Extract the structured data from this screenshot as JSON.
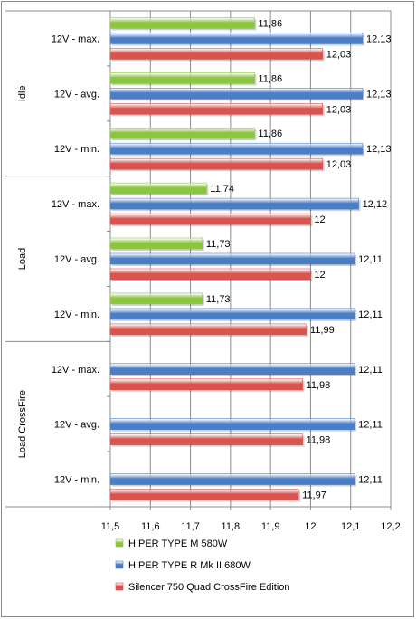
{
  "chart_data": {
    "type": "bar",
    "orientation": "horizontal",
    "title": "",
    "xlabel": "",
    "ylabel": "",
    "xlim": [
      11.5,
      12.2
    ],
    "x_ticks": [
      "11,5",
      "11,6",
      "11,7",
      "11,8",
      "11,9",
      "12",
      "12,1",
      "12,2"
    ],
    "x_tick_values": [
      11.5,
      11.6,
      11.7,
      11.8,
      11.9,
      12.0,
      12.1,
      12.2
    ],
    "grid": true,
    "legend_position": "bottom",
    "groups": [
      "Idle",
      "Load",
      "Load CrossFire"
    ],
    "categories": [
      "12V - max.",
      "12V - avg.",
      "12V - min.",
      "12V - max.",
      "12V - avg.",
      "12V - min.",
      "12V - max.",
      "12V - avg.",
      "12V - min."
    ],
    "category_group": [
      0,
      0,
      0,
      1,
      1,
      1,
      2,
      2,
      2
    ],
    "series": [
      {
        "name": "HIPER TYPE  M 580W",
        "color": "#8cc63e",
        "values": [
          11.86,
          11.86,
          11.86,
          11.74,
          11.73,
          11.73,
          null,
          null,
          null
        ],
        "labels": [
          "11,86",
          "11,86",
          "11,86",
          "11,74",
          "11,73",
          "11,73",
          "",
          "",
          ""
        ]
      },
      {
        "name": "HIPER TYPE  R Mk II 680W",
        "color": "#4a7fc8",
        "values": [
          12.13,
          12.13,
          12.13,
          12.12,
          12.11,
          12.11,
          12.11,
          12.11,
          12.11
        ],
        "labels": [
          "12,13",
          "12,13",
          "12,13",
          "12,12",
          "12,11",
          "12,11",
          "12,11",
          "12,11",
          "12,11"
        ]
      },
      {
        "name": "Silencer 750 Quad CrossFire Edition",
        "color": "#d9534f",
        "values": [
          12.03,
          12.03,
          12.03,
          12.0,
          12.0,
          11.99,
          11.98,
          11.98,
          11.97
        ],
        "labels": [
          "12,03",
          "12,03",
          "12,03",
          "12",
          "12",
          "11,99",
          "11,98",
          "11,98",
          "11,97"
        ]
      }
    ]
  }
}
